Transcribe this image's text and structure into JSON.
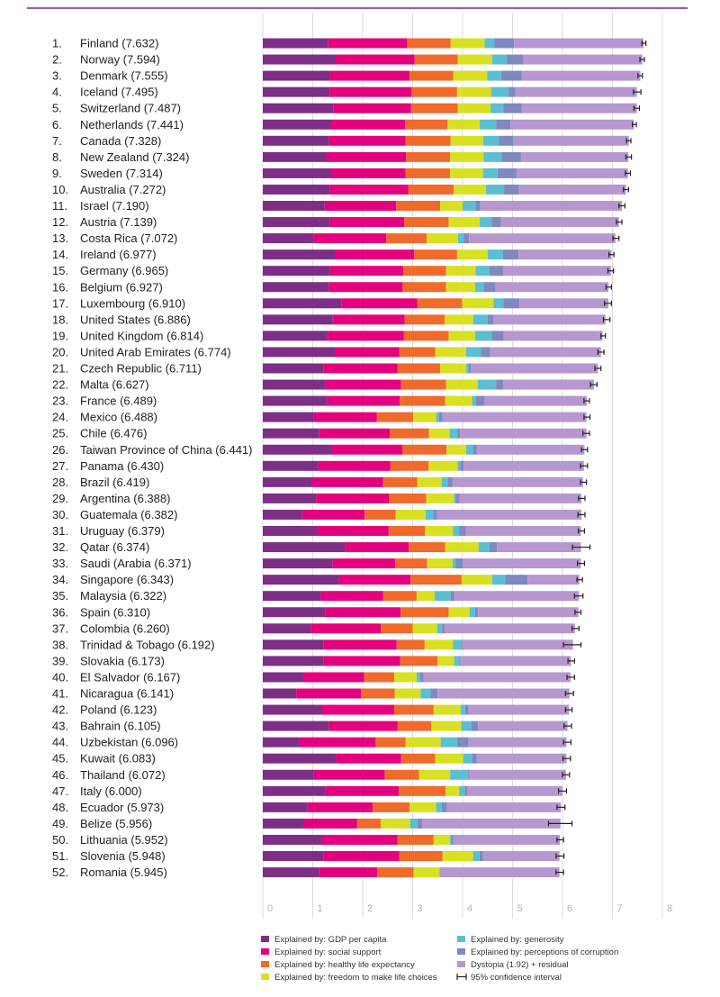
{
  "chart_data": {
    "type": "bar",
    "orientation": "horizontal",
    "stacked": true,
    "xlim": [
      0,
      8
    ],
    "xticks": [
      0,
      1,
      2,
      3,
      4,
      5,
      6,
      7,
      8
    ],
    "grid": true,
    "legend_position": "bottom",
    "series": [
      {
        "key": "gdp",
        "name": "Explained by: GDP per capita",
        "color": "#7d2f86"
      },
      {
        "key": "social",
        "name": "Explained by: social support",
        "color": "#e5007e"
      },
      {
        "key": "health",
        "name": "Explained by: healthy life expectancy",
        "color": "#f06a2b"
      },
      {
        "key": "freedom",
        "name": "Explained by: freedom to make life choices",
        "color": "#d9e021"
      },
      {
        "key": "generosity",
        "name": "Explained by: generosity",
        "color": "#5bbfd1"
      },
      {
        "key": "corruption",
        "name": "Explained by: perceptions of corruption",
        "color": "#8088c2"
      },
      {
        "key": "dystopia",
        "name": "Dystopia (1.92) + residual",
        "color": "#b797cf"
      }
    ],
    "ci_legend": "95% confidence interval",
    "countries": [
      {
        "rank": "1.",
        "name": "Finland",
        "score": "7.632",
        "v": [
          1.31,
          1.58,
          0.87,
          0.68,
          0.2,
          0.39,
          2.59
        ],
        "ci": [
          7.59,
          7.67
        ]
      },
      {
        "rank": "2.",
        "name": "Norway",
        "score": "7.594",
        "v": [
          1.46,
          1.58,
          0.86,
          0.69,
          0.29,
          0.34,
          2.38
        ],
        "ci": [
          7.55,
          7.64
        ]
      },
      {
        "rank": "3.",
        "name": "Denmark",
        "score": "7.555",
        "v": [
          1.35,
          1.59,
          0.87,
          0.68,
          0.28,
          0.41,
          2.38
        ],
        "ci": [
          7.51,
          7.6
        ]
      },
      {
        "rank": "4.",
        "name": "Iceland",
        "score": "7.495",
        "v": [
          1.34,
          1.64,
          0.91,
          0.68,
          0.35,
          0.14,
          2.43
        ],
        "ci": [
          7.42,
          7.57
        ]
      },
      {
        "rank": "5.",
        "name": "Switzerland",
        "score": "7.487",
        "v": [
          1.42,
          1.55,
          0.93,
          0.66,
          0.26,
          0.36,
          2.31
        ],
        "ci": [
          7.43,
          7.54
        ]
      },
      {
        "rank": "6.",
        "name": "Netherlands",
        "score": "7.441",
        "v": [
          1.36,
          1.49,
          0.85,
          0.64,
          0.33,
          0.29,
          2.47
        ],
        "ci": [
          7.4,
          7.48
        ]
      },
      {
        "rank": "7.",
        "name": "Canada",
        "score": "7.328",
        "v": [
          1.33,
          1.53,
          0.9,
          0.65,
          0.32,
          0.29,
          2.31
        ],
        "ci": [
          7.28,
          7.37
        ]
      },
      {
        "rank": "8.",
        "name": "New Zealand",
        "score": "7.324",
        "v": [
          1.27,
          1.6,
          0.88,
          0.67,
          0.36,
          0.39,
          2.15
        ],
        "ci": [
          7.27,
          7.38
        ]
      },
      {
        "rank": "9.",
        "name": "Sweden",
        "score": "7.314",
        "v": [
          1.36,
          1.5,
          0.89,
          0.66,
          0.29,
          0.38,
          2.23
        ],
        "ci": [
          7.26,
          7.36
        ]
      },
      {
        "rank": "10.",
        "name": "Australia",
        "score": "7.272",
        "v": [
          1.34,
          1.57,
          0.91,
          0.65,
          0.36,
          0.3,
          2.14
        ],
        "ci": [
          7.22,
          7.32
        ]
      },
      {
        "rank": "11.",
        "name": "Israel",
        "score": "7.190",
        "v": [
          1.24,
          1.43,
          0.88,
          0.45,
          0.26,
          0.09,
          2.84
        ],
        "ci": [
          7.13,
          7.25
        ]
      },
      {
        "rank": "12.",
        "name": "Austria",
        "score": "7.139",
        "v": [
          1.34,
          1.49,
          0.89,
          0.62,
          0.24,
          0.19,
          2.36
        ],
        "ci": [
          7.08,
          7.19
        ]
      },
      {
        "rank": "13.",
        "name": "Costa Rica",
        "score": "7.072",
        "v": [
          1.01,
          1.46,
          0.81,
          0.63,
          0.11,
          0.11,
          2.93
        ],
        "ci": [
          7.01,
          7.13
        ]
      },
      {
        "rank": "14.",
        "name": "Ireland",
        "score": "6.977",
        "v": [
          1.45,
          1.58,
          0.86,
          0.61,
          0.31,
          0.31,
          1.86
        ],
        "ci": [
          6.93,
          7.03
        ]
      },
      {
        "rank": "15.",
        "name": "Germany",
        "score": "6.965",
        "v": [
          1.34,
          1.47,
          0.86,
          0.59,
          0.28,
          0.27,
          2.16
        ],
        "ci": [
          6.91,
          7.02
        ]
      },
      {
        "rank": "16.",
        "name": "Belgium",
        "score": "6.927",
        "v": [
          1.32,
          1.48,
          0.87,
          0.58,
          0.17,
          0.24,
          2.26
        ],
        "ci": [
          6.87,
          6.98
        ]
      },
      {
        "rank": "17.",
        "name": "Luxembourg",
        "score": "6.910",
        "v": [
          1.58,
          1.51,
          0.9,
          0.63,
          0.2,
          0.32,
          1.78
        ],
        "ci": [
          6.84,
          6.98
        ]
      },
      {
        "rank": "18.",
        "name": "United States",
        "score": "6.886",
        "v": [
          1.4,
          1.44,
          0.8,
          0.57,
          0.29,
          0.12,
          2.24
        ],
        "ci": [
          6.82,
          6.95
        ]
      },
      {
        "rank": "19.",
        "name": "United Kingdom",
        "score": "6.814",
        "v": [
          1.3,
          1.52,
          0.9,
          0.53,
          0.33,
          0.24,
          1.98
        ],
        "ci": [
          6.77,
          6.86
        ]
      },
      {
        "rank": "20.",
        "name": "United Arab Emirates",
        "score": "6.774",
        "v": [
          1.45,
          1.28,
          0.72,
          0.62,
          0.3,
          0.18,
          2.22
        ],
        "ci": [
          6.71,
          6.83
        ]
      },
      {
        "rank": "21.",
        "name": "Czech Republic",
        "score": "6.711",
        "v": [
          1.22,
          1.48,
          0.85,
          0.52,
          0.05,
          0.05,
          2.54
        ],
        "ci": [
          6.65,
          6.77
        ]
      },
      {
        "rank": "22.",
        "name": "Malta",
        "score": "6.627",
        "v": [
          1.25,
          1.52,
          0.9,
          0.63,
          0.37,
          0.14,
          1.82
        ],
        "ci": [
          6.56,
          6.69
        ]
      },
      {
        "rank": "23.",
        "name": "France",
        "score": "6.489",
        "v": [
          1.29,
          1.45,
          0.91,
          0.54,
          0.08,
          0.17,
          2.05
        ],
        "ci": [
          6.43,
          6.54
        ]
      },
      {
        "rank": "24.",
        "name": "Mexico",
        "score": "6.488",
        "v": [
          1.02,
          1.26,
          0.73,
          0.46,
          0.06,
          0.07,
          2.88
        ],
        "ci": [
          6.43,
          6.55
        ]
      },
      {
        "rank": "25.",
        "name": "Chile",
        "score": "6.476",
        "v": [
          1.13,
          1.41,
          0.79,
          0.41,
          0.16,
          0.05,
          2.53
        ],
        "ci": [
          6.41,
          6.54
        ]
      },
      {
        "rank": "26.",
        "name": "Taiwan Province of China",
        "score": "6.441",
        "v": [
          1.37,
          1.43,
          0.88,
          0.39,
          0.14,
          0.07,
          2.16
        ],
        "ci": [
          6.38,
          6.5
        ]
      },
      {
        "rank": "27.",
        "name": "Panama",
        "score": "6.430",
        "v": [
          1.11,
          1.44,
          0.77,
          0.58,
          0.05,
          0.07,
          2.41
        ],
        "ci": [
          6.36,
          6.5
        ]
      },
      {
        "rank": "28.",
        "name": "Brazil",
        "score": "6.419",
        "v": [
          0.99,
          1.42,
          0.68,
          0.49,
          0.12,
          0.1,
          2.61
        ],
        "ci": [
          6.36,
          6.48
        ]
      },
      {
        "rank": "29.",
        "name": "Argentina",
        "score": "6.388",
        "v": [
          1.07,
          1.46,
          0.74,
          0.56,
          0.03,
          0.08,
          2.44
        ],
        "ci": [
          6.32,
          6.45
        ]
      },
      {
        "rank": "30.",
        "name": "Guatemala",
        "score": "6.382",
        "v": [
          0.78,
          1.26,
          0.62,
          0.6,
          0.15,
          0.08,
          2.89
        ],
        "ci": [
          6.31,
          6.45
        ]
      },
      {
        "rank": "31.",
        "name": "Uruguay",
        "score": "6.379",
        "v": [
          1.09,
          1.43,
          0.73,
          0.56,
          0.12,
          0.14,
          2.3
        ],
        "ci": [
          6.32,
          6.44
        ]
      },
      {
        "rank": "32.",
        "name": "Qatar",
        "score": "6.374",
        "v": [
          1.65,
          1.27,
          0.73,
          0.67,
          0.22,
          0.15,
          1.68
        ],
        "ci": [
          6.2,
          6.55
        ]
      },
      {
        "rank": "33.",
        "name": "Saudi (Arabia",
        "score": "6.371",
        "v": [
          1.4,
          1.25,
          0.64,
          0.51,
          0.06,
          0.14,
          2.37
        ],
        "ci": [
          6.3,
          6.44
        ]
      },
      {
        "rank": "34.",
        "name": "Singapore",
        "score": "6.343",
        "v": [
          1.53,
          1.43,
          1.02,
          0.61,
          0.26,
          0.45,
          1.04
        ],
        "ci": [
          6.29,
          6.4
        ]
      },
      {
        "rank": "35.",
        "name": "Malaysia",
        "score": "6.322",
        "v": [
          1.16,
          1.25,
          0.67,
          0.36,
          0.32,
          0.07,
          2.5
        ],
        "ci": [
          6.24,
          6.41
        ]
      },
      {
        "rank": "36.",
        "name": "Spain",
        "score": "6.310",
        "v": [
          1.25,
          1.51,
          0.96,
          0.42,
          0.11,
          0.06,
          2.01
        ],
        "ci": [
          6.25,
          6.37
        ]
      },
      {
        "rank": "37.",
        "name": "Colombia",
        "score": "6.260",
        "v": [
          0.96,
          1.4,
          0.64,
          0.49,
          0.1,
          0.05,
          2.61
        ],
        "ci": [
          6.19,
          6.33
        ]
      },
      {
        "rank": "38.",
        "name": "Trinidad & Tobago",
        "score": "6.192",
        "v": [
          1.22,
          1.46,
          0.56,
          0.57,
          0.16,
          0.02,
          2.22
        ],
        "ci": [
          6.02,
          6.37
        ]
      },
      {
        "rank": "39.",
        "name": "Slovakia",
        "score": "6.173",
        "v": [
          1.21,
          1.54,
          0.75,
          0.33,
          0.1,
          0.03,
          2.21
        ],
        "ci": [
          6.11,
          6.24
        ]
      },
      {
        "rank": "40.",
        "name": "El Salvador",
        "score": "6.167",
        "v": [
          0.82,
          1.21,
          0.6,
          0.45,
          0.06,
          0.08,
          2.94
        ],
        "ci": [
          6.09,
          6.24
        ]
      },
      {
        "rank": "41.",
        "name": "Nicaragua",
        "score": "6.141",
        "v": [
          0.67,
          1.3,
          0.67,
          0.52,
          0.2,
          0.14,
          2.64
        ],
        "ci": [
          6.06,
          6.22
        ]
      },
      {
        "rank": "42.",
        "name": "Poland",
        "score": "6.123",
        "v": [
          1.18,
          1.45,
          0.79,
          0.54,
          0.09,
          0.07,
          2.01
        ],
        "ci": [
          6.06,
          6.19
        ]
      },
      {
        "rank": "43.",
        "name": "Bahrain",
        "score": "6.105",
        "v": [
          1.32,
          1.38,
          0.67,
          0.6,
          0.21,
          0.13,
          1.79
        ],
        "ci": [
          6.03,
          6.18
        ]
      },
      {
        "rank": "44.",
        "name": "Uzbekistan",
        "score": "6.096",
        "v": [
          0.72,
          1.54,
          0.6,
          0.7,
          0.33,
          0.23,
          1.96
        ],
        "ci": [
          6.02,
          6.17
        ]
      },
      {
        "rank": "45.",
        "name": "Kuwait",
        "score": "6.083",
        "v": [
          1.47,
          1.3,
          0.68,
          0.56,
          0.18,
          0.09,
          1.8
        ],
        "ci": [
          6.01,
          6.16
        ]
      },
      {
        "rank": "46.",
        "name": "Thailand",
        "score": "6.072",
        "v": [
          1.02,
          1.42,
          0.69,
          0.62,
          0.36,
          0.03,
          1.93
        ],
        "ci": [
          6.0,
          6.14
        ]
      },
      {
        "rank": "47.",
        "name": "Italy",
        "score": "6.000",
        "v": [
          1.26,
          1.46,
          0.94,
          0.27,
          0.11,
          0.05,
          1.91
        ],
        "ci": [
          5.92,
          6.08
        ]
      },
      {
        "rank": "48.",
        "name": "Ecuador",
        "score": "5.973",
        "v": [
          0.89,
          1.31,
          0.74,
          0.53,
          0.11,
          0.11,
          2.28
        ],
        "ci": [
          5.89,
          6.05
        ]
      },
      {
        "rank": "49.",
        "name": "Belize",
        "score": "5.956",
        "v": [
          0.81,
          1.08,
          0.47,
          0.59,
          0.15,
          0.09,
          2.77
        ],
        "ci": [
          5.72,
          6.19
        ]
      },
      {
        "rank": "50.",
        "name": "Lithuania",
        "score": "5.952",
        "v": [
          1.19,
          1.51,
          0.72,
          0.33,
          0.02,
          0.04,
          2.14
        ],
        "ci": [
          5.89,
          6.02
        ]
      },
      {
        "rank": "51.",
        "name": "Slovenia",
        "score": "5.948",
        "v": [
          1.22,
          1.51,
          0.87,
          0.61,
          0.13,
          0.07,
          1.53
        ],
        "ci": [
          5.87,
          6.03
        ]
      },
      {
        "rank": "52.",
        "name": "Romania",
        "score": "5.945",
        "v": [
          1.12,
          1.17,
          0.73,
          0.52,
          0.01,
          0.01,
          2.38
        ],
        "ci": [
          5.87,
          6.02
        ]
      }
    ]
  }
}
